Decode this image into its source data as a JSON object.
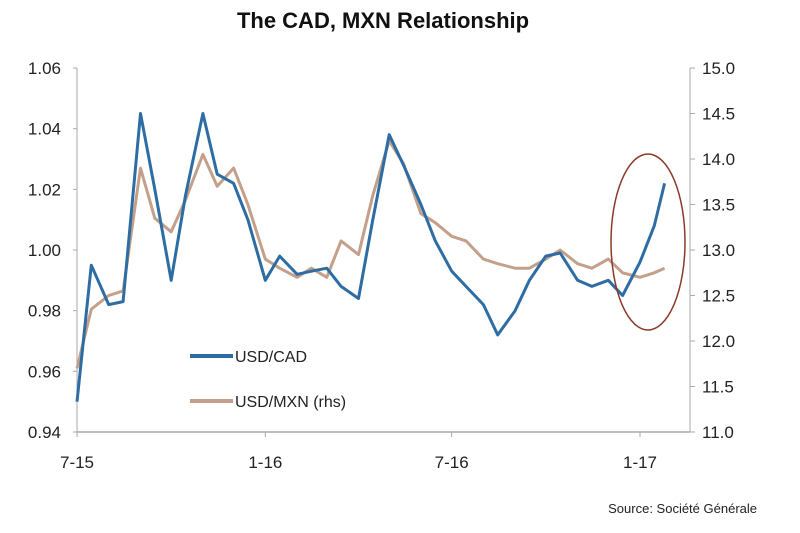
{
  "chart_data": {
    "type": "line",
    "title": "The CAD, MXN Relationship",
    "source": "Source: Société Générale",
    "x_tick_labels": [
      "7-15",
      "1-16",
      "7-16",
      "1-17"
    ],
    "x_ticks": [
      "2015-07-01",
      "2016-01-01",
      "2016-07-01",
      "2017-01-01"
    ],
    "x_range": [
      "2015-07-01",
      "2017-02-18"
    ],
    "y_left": {
      "range": [
        0.94,
        1.06
      ],
      "ticks": [
        "0.94",
        "0.96",
        "0.98",
        "1.00",
        "1.02",
        "1.04",
        "1.06"
      ]
    },
    "y_right": {
      "range": [
        11.0,
        15.0
      ],
      "ticks": [
        "11.0",
        "11.5",
        "12.0",
        "12.5",
        "13.0",
        "13.5",
        "14.0",
        "14.5",
        "15.0"
      ]
    },
    "grid": false,
    "legend_placement": "bottom-left inside",
    "x": [
      "2015-07-01",
      "2015-07-15",
      "2015-08-01",
      "2015-08-15",
      "2015-09-01",
      "2015-09-15",
      "2015-10-01",
      "2015-10-15",
      "2015-11-01",
      "2015-11-15",
      "2015-12-01",
      "2015-12-15",
      "2016-01-01",
      "2016-01-15",
      "2016-02-01",
      "2016-02-15",
      "2016-03-01",
      "2016-03-15",
      "2016-04-01",
      "2016-04-15",
      "2016-05-01",
      "2016-05-15",
      "2016-06-01",
      "2016-06-15",
      "2016-07-01",
      "2016-07-15",
      "2016-08-01",
      "2016-08-15",
      "2016-09-01",
      "2016-09-15",
      "2016-10-01",
      "2016-10-15",
      "2016-11-01",
      "2016-11-15",
      "2016-12-01",
      "2016-12-15",
      "2017-01-01",
      "2017-01-15",
      "2017-01-25"
    ],
    "series": [
      {
        "name": "USD/CAD",
        "axis": "left",
        "color": "#2e6da4",
        "values": [
          0.95,
          0.995,
          0.982,
          0.983,
          1.045,
          1.02,
          0.99,
          1.018,
          1.045,
          1.025,
          1.022,
          1.01,
          0.99,
          0.998,
          0.992,
          0.993,
          0.994,
          0.988,
          0.984,
          1.01,
          1.038,
          1.028,
          1.015,
          1.003,
          0.993,
          0.988,
          0.982,
          0.972,
          0.98,
          0.99,
          0.998,
          0.999,
          0.99,
          0.988,
          0.99,
          0.985,
          0.996,
          1.008,
          1.022
        ]
      },
      {
        "name": "USD/MXN (rhs)",
        "axis": "right",
        "color": "#c4a08a",
        "values": [
          11.7,
          12.35,
          12.5,
          12.55,
          13.9,
          13.35,
          13.2,
          13.55,
          14.05,
          13.7,
          13.9,
          13.5,
          12.9,
          12.8,
          12.7,
          12.8,
          12.7,
          13.1,
          12.95,
          13.6,
          14.2,
          13.95,
          13.4,
          13.3,
          13.15,
          13.1,
          12.9,
          12.85,
          12.8,
          12.8,
          12.9,
          13.0,
          12.85,
          12.8,
          12.9,
          12.75,
          12.7,
          12.75,
          12.8
        ]
      }
    ],
    "annotation": {
      "shape": "ellipse",
      "color": "#8b3a2a",
      "around": "2017-01 USD/CAD rise"
    }
  }
}
